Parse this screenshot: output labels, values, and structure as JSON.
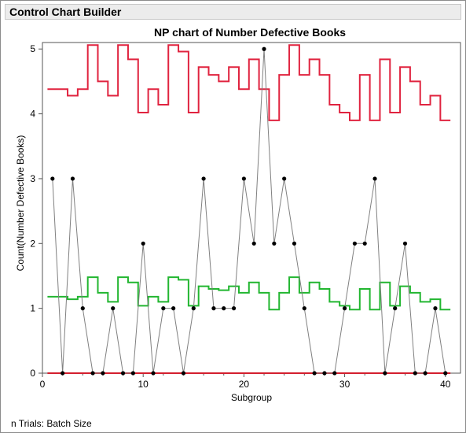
{
  "app": {
    "title": "Control Chart Builder",
    "footer_note": "n Trials: Batch Size"
  },
  "colors": {
    "limit_line": "#e0233f",
    "center_line": "#22b630",
    "data_line": "#808080",
    "point": "#000000",
    "zero_line": "#d41f2e"
  },
  "chart_data": {
    "type": "line",
    "title": "NP chart of Number Defective Books",
    "xlabel": "Subgroup",
    "ylabel": "Count(Number Defective Books)",
    "xlim": [
      0,
      41.5
    ],
    "ylim": [
      0,
      5.1
    ],
    "x_ticks": [
      0,
      10,
      20,
      30,
      40
    ],
    "y_ticks": [
      0,
      1,
      2,
      3,
      4,
      5
    ],
    "x": [
      1,
      2,
      3,
      4,
      5,
      6,
      7,
      8,
      9,
      10,
      11,
      12,
      13,
      14,
      15,
      16,
      17,
      18,
      19,
      20,
      21,
      22,
      23,
      24,
      25,
      26,
      27,
      28,
      29,
      30,
      31,
      32,
      33,
      34,
      35,
      36,
      37,
      38,
      39,
      40
    ],
    "series": [
      {
        "values": [
          3,
          0,
          3,
          1,
          0,
          0,
          1,
          0,
          0,
          2,
          0,
          1,
          1,
          0,
          1,
          3,
          1,
          1,
          1,
          3,
          2,
          5,
          2,
          3,
          2,
          1,
          0,
          0,
          0,
          1,
          2,
          2,
          3,
          0,
          1,
          2,
          0,
          0,
          1,
          0
        ]
      }
    ],
    "center_line": [
      1.18,
      1.18,
      1.14,
      1.18,
      1.48,
      1.24,
      1.1,
      1.48,
      1.4,
      1.04,
      1.18,
      1.1,
      1.48,
      1.44,
      1.04,
      1.34,
      1.3,
      1.28,
      1.34,
      1.24,
      1.4,
      1.24,
      0.98,
      1.24,
      1.48,
      1.24,
      1.4,
      1.3,
      1.1,
      1.04,
      0.98,
      1.3,
      0.98,
      1.4,
      1.04,
      1.34,
      1.24,
      1.1,
      1.14,
      0.98
    ],
    "ucl": [
      4.38,
      4.38,
      4.28,
      4.38,
      5.06,
      4.5,
      4.28,
      5.06,
      4.84,
      4.02,
      4.38,
      4.14,
      5.06,
      4.96,
      4.02,
      4.72,
      4.6,
      4.5,
      4.72,
      4.38,
      4.84,
      4.38,
      3.9,
      4.6,
      5.06,
      4.6,
      4.84,
      4.6,
      4.14,
      4.02,
      3.9,
      4.6,
      3.9,
      4.84,
      4.02,
      4.72,
      4.5,
      4.14,
      4.28,
      3.9
    ],
    "lcl": [
      0,
      0,
      0,
      0,
      0,
      0,
      0,
      0,
      0,
      0,
      0,
      0,
      0,
      0,
      0,
      0,
      0,
      0,
      0,
      0,
      0,
      0,
      0,
      0,
      0,
      0,
      0,
      0,
      0,
      0,
      0,
      0,
      0,
      0,
      0,
      0,
      0,
      0,
      0,
      0
    ],
    "grid": false,
    "legend": "none"
  }
}
